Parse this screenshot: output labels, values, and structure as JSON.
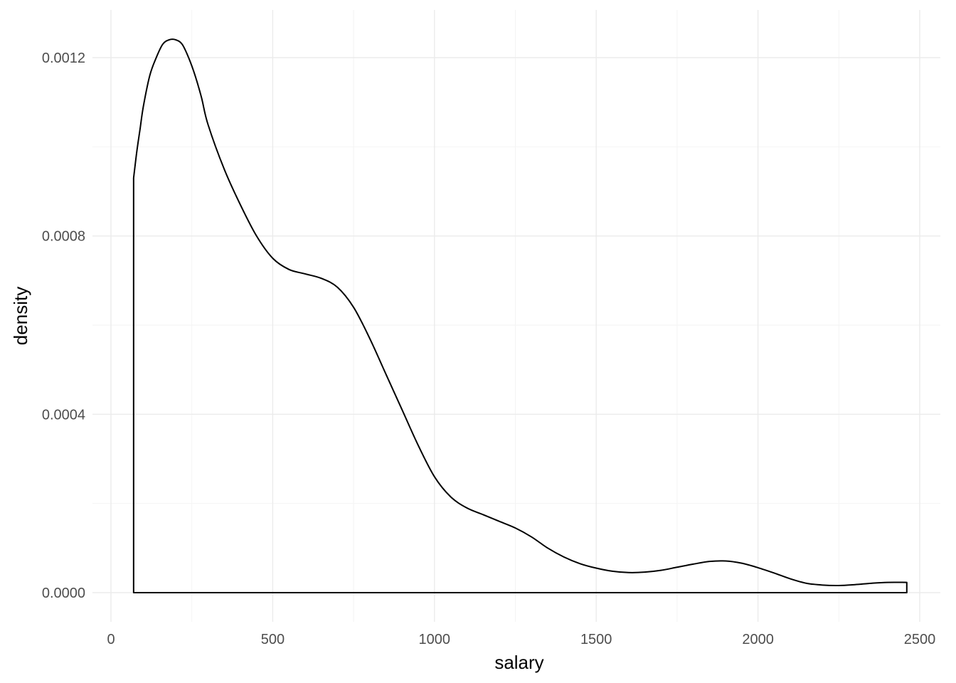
{
  "chart_data": {
    "type": "area",
    "xlabel": "salary",
    "ylabel": "density",
    "xlim": [
      0,
      2500
    ],
    "ylim": [
      0,
      0.0012
    ],
    "x_ticks": [
      0,
      500,
      1000,
      1500,
      2000,
      2500
    ],
    "x_tick_labels": [
      "0",
      "500",
      "1000",
      "1500",
      "2000",
      "2500"
    ],
    "y_ticks": [
      0,
      0.0004,
      0.0008,
      0.0012
    ],
    "y_tick_labels": [
      "0.0000",
      "0.0004",
      "0.0008",
      "0.0012"
    ],
    "grid": true,
    "fill": "none",
    "line_color": "#000000",
    "series": [
      {
        "x": [
          70,
          80,
          90,
          100,
          120,
          140,
          160,
          180,
          200,
          220,
          240,
          260,
          280,
          300,
          350,
          400,
          450,
          500,
          550,
          600,
          650,
          700,
          750,
          800,
          850,
          900,
          950,
          1000,
          1050,
          1100,
          1150,
          1200,
          1250,
          1300,
          1350,
          1400,
          1450,
          1500,
          1550,
          1600,
          1650,
          1700,
          1750,
          1800,
          1850,
          1900,
          1950,
          2000,
          2050,
          2100,
          2150,
          2200,
          2250,
          2300,
          2350,
          2400,
          2460
        ],
        "y": [
          0.00093,
          0.00099,
          0.00104,
          0.00109,
          0.00116,
          0.0012,
          0.00123,
          0.00124,
          0.00124,
          0.00123,
          0.0012,
          0.00116,
          0.00111,
          0.00105,
          0.00095,
          0.00087,
          0.0008,
          0.00075,
          0.000725,
          0.000715,
          0.000705,
          0.000685,
          0.00064,
          0.00057,
          0.00049,
          0.00041,
          0.00033,
          0.00026,
          0.000215,
          0.00019,
          0.000175,
          0.00016,
          0.000145,
          0.000125,
          0.0001,
          8e-05,
          6.5e-05,
          5.5e-05,
          4.8e-05,
          4.5e-05,
          4.6e-05,
          5e-05,
          5.7e-05,
          6.4e-05,
          7e-05,
          7.1e-05,
          6.6e-05,
          5.6e-05,
          4.4e-05,
          3.1e-05,
          2.1e-05,
          1.7e-05,
          1.6e-05,
          1.8e-05,
          2.1e-05,
          2.3e-05,
          2.3e-05
        ]
      }
    ]
  }
}
